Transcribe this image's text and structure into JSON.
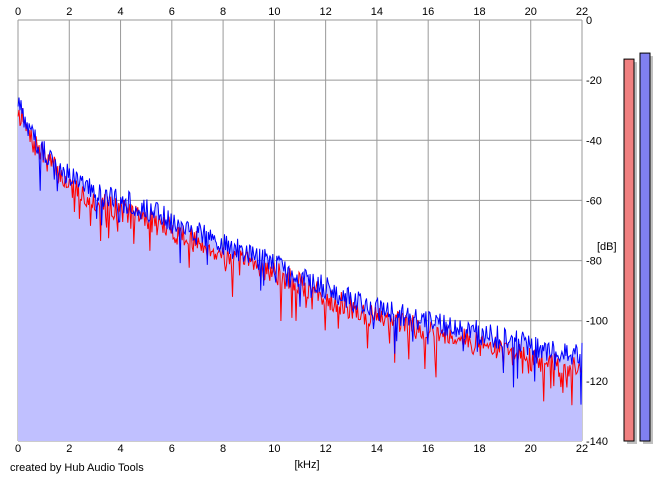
{
  "credit": "created by Hub Audio Tools",
  "chart_data": {
    "type": "line",
    "xlabel": "[kHz]",
    "ylabel": "[dB]",
    "xlim": [
      0,
      22
    ],
    "ylim": [
      -140,
      0
    ],
    "x_ticks": [
      0,
      2,
      4,
      6,
      8,
      10,
      12,
      14,
      16,
      18,
      20,
      22
    ],
    "y_ticks": [
      0,
      -20,
      -40,
      -60,
      -80,
      -100,
      -120,
      -140
    ],
    "y_tick_labels": [
      "0",
      "-20",
      "-40",
      "-60",
      "-80",
      "-100",
      "-120",
      "-140"
    ],
    "grid": true,
    "fill_color": "#c0c0ff",
    "series": [
      {
        "color": "#ff0000",
        "x": [
          0,
          0.25,
          0.5,
          1,
          1.5,
          2,
          2.5,
          3,
          3.5,
          4,
          5,
          6,
          7,
          8,
          9,
          10,
          11,
          12,
          13,
          14,
          15,
          16,
          17,
          18,
          19,
          20,
          21,
          22
        ],
        "values": [
          -30,
          -35,
          -40,
          -45,
          -50,
          -55,
          -58,
          -60,
          -62,
          -63,
          -66,
          -70,
          -74,
          -78,
          -81,
          -84,
          -88,
          -92,
          -96,
          -99,
          -101,
          -103,
          -105,
          -108,
          -110,
          -113,
          -115,
          -116
        ]
      },
      {
        "color": "#0000ff",
        "x": [
          0,
          0.25,
          0.5,
          1,
          1.5,
          2,
          2.5,
          3,
          3.5,
          4,
          5,
          6,
          7,
          8,
          9,
          10,
          11,
          12,
          13,
          14,
          15,
          16,
          17,
          18,
          19,
          20,
          21,
          22
        ],
        "values": [
          -27,
          -33,
          -38,
          -43,
          -48,
          -52,
          -55,
          -57,
          -59,
          -60,
          -63,
          -67,
          -71,
          -75,
          -78,
          -81,
          -85,
          -89,
          -93,
          -96,
          -98,
          -100,
          -102,
          -104,
          -106,
          -108,
          -111,
          -111
        ]
      }
    ],
    "level_meters": [
      {
        "color": "#f08080",
        "level_db": -13
      },
      {
        "color": "#8080f0",
        "level_db": -11
      }
    ]
  }
}
